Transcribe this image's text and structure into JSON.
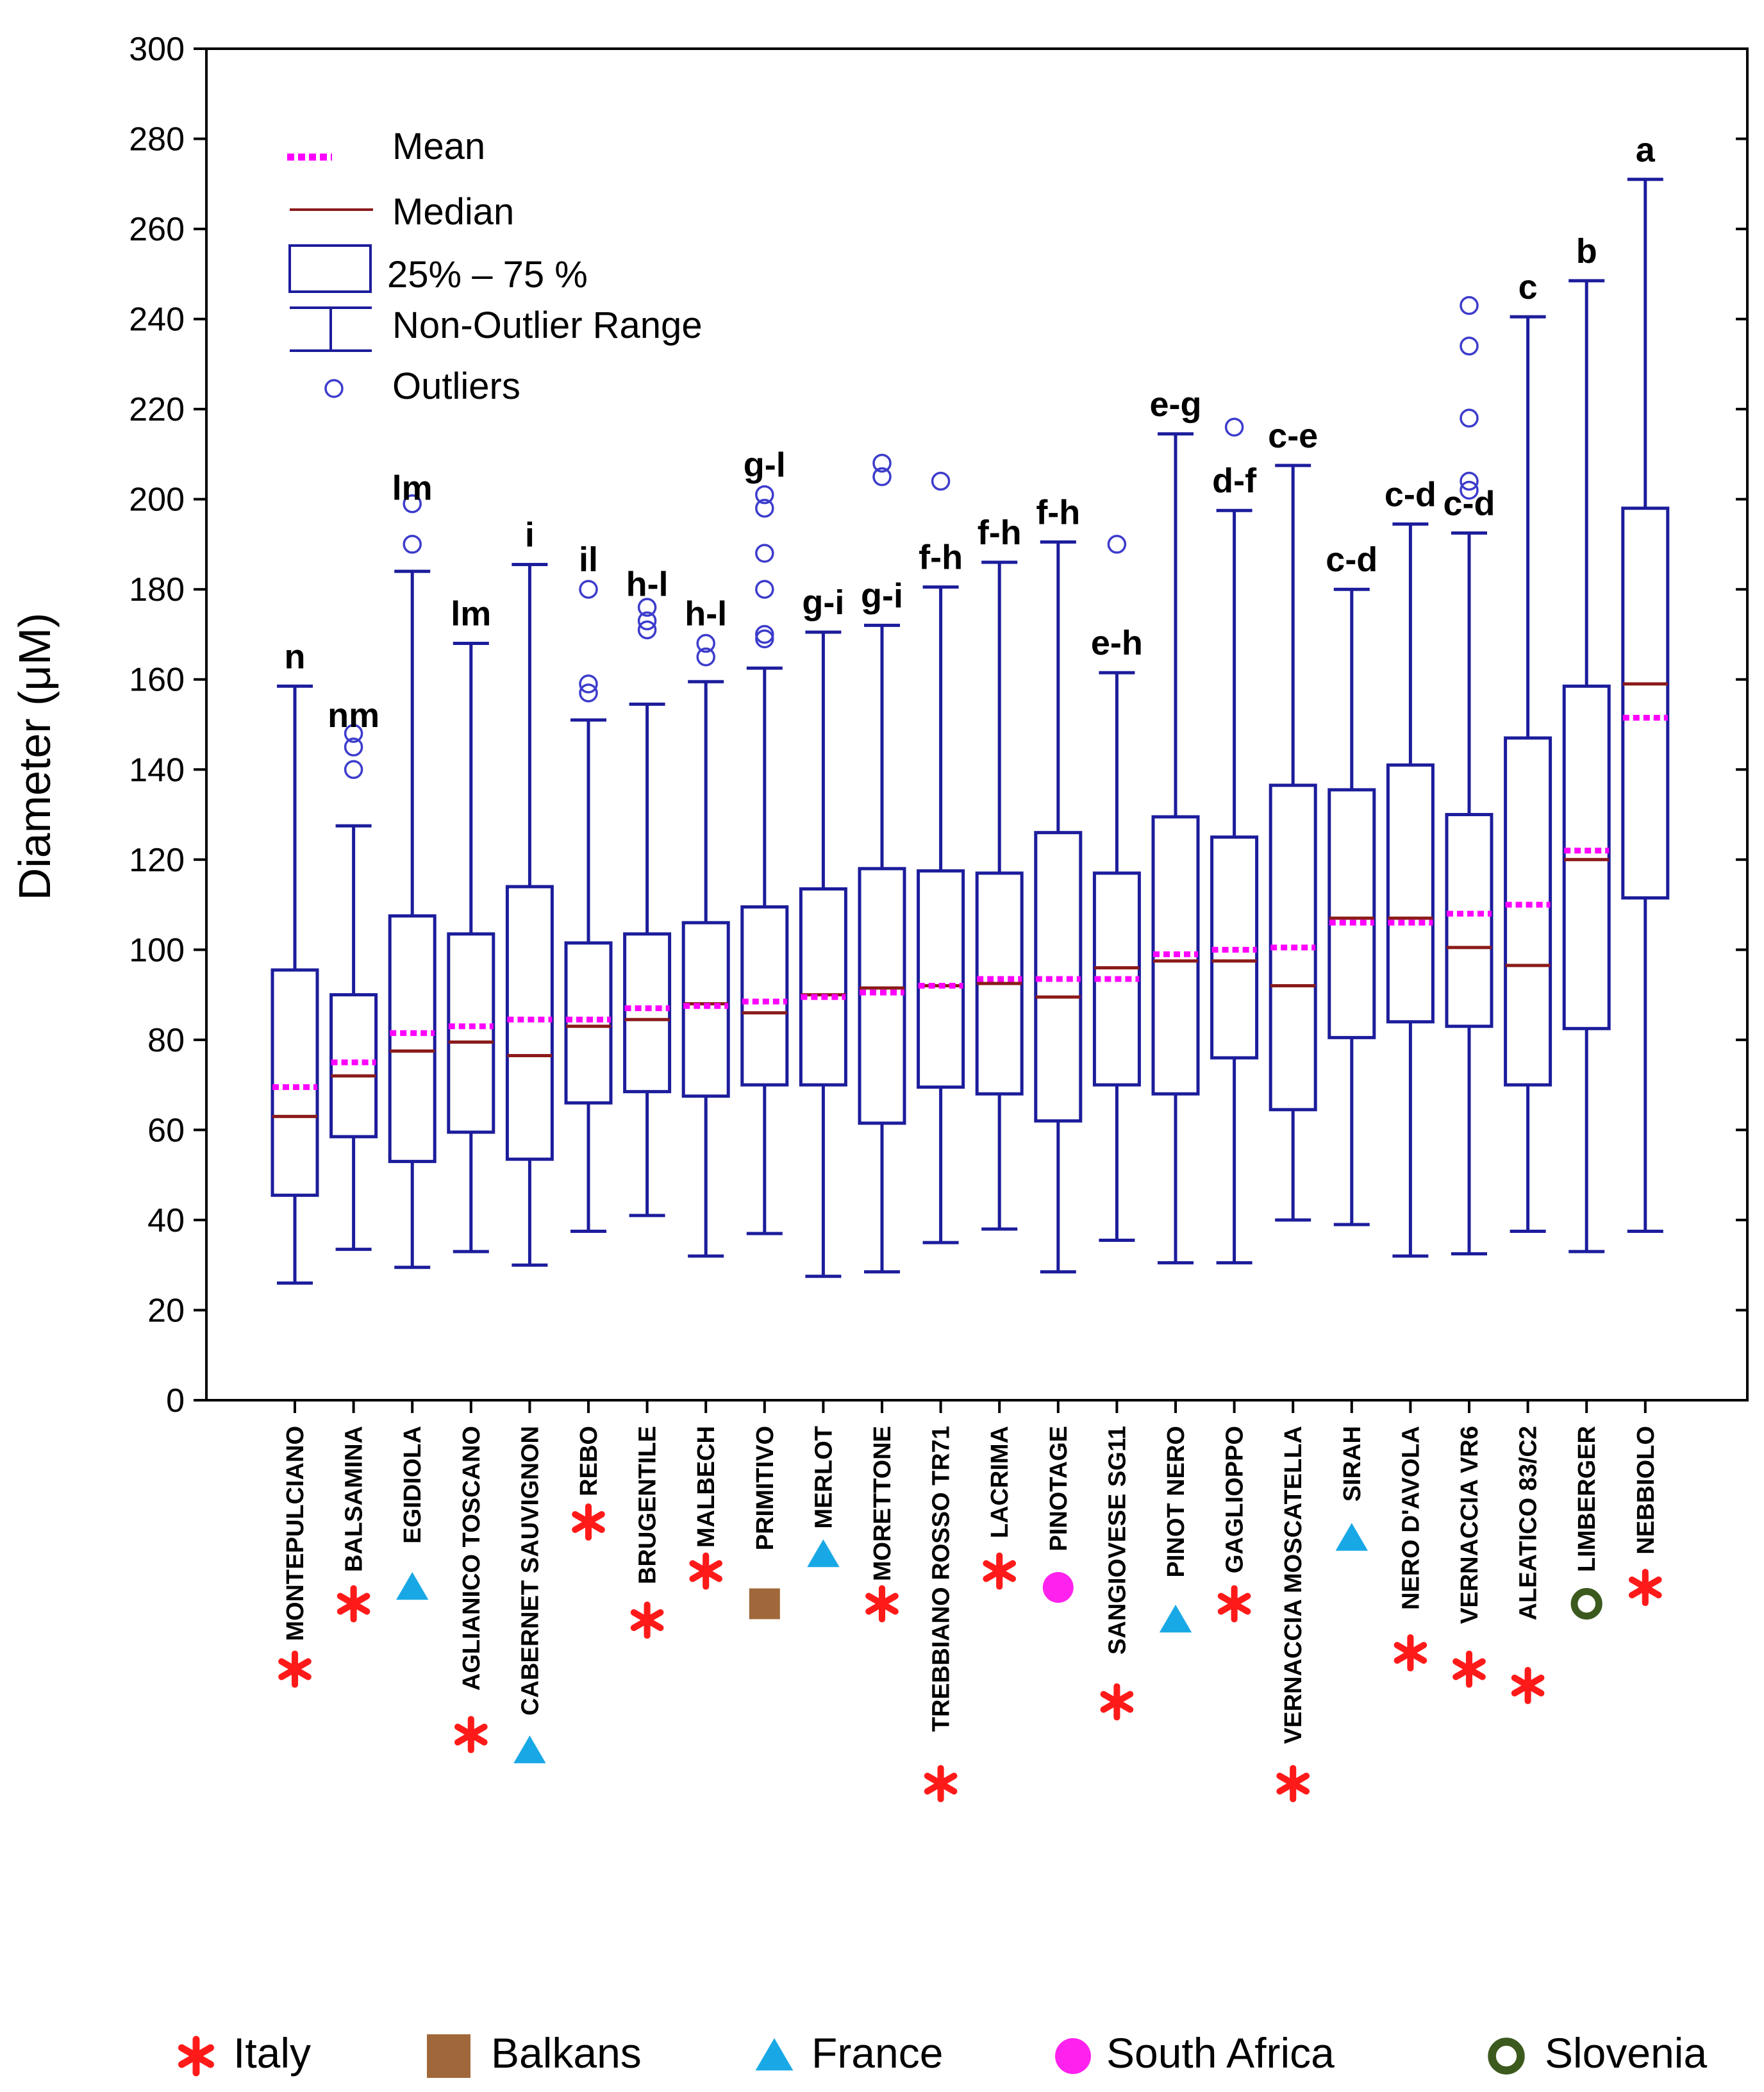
{
  "chart_data": {
    "type": "boxplot",
    "ylabel": "Diameter  (μM)",
    "ylim": [
      0,
      300
    ],
    "yticks": [
      0,
      20,
      40,
      60,
      80,
      100,
      120,
      140,
      160,
      180,
      200,
      220,
      240,
      260,
      280,
      300
    ],
    "colors": {
      "box": "#1c1c9c",
      "median": "#8b1a1a",
      "mean": "#ff00ff",
      "outlier": "#3c3ccc"
    },
    "legend": {
      "mean": "Mean",
      "median": "Median",
      "box": "25% – 75 %",
      "range": "Non-Outlier Range",
      "outliers": "Outliers"
    },
    "categories": [
      {
        "name": "MONTEPULCIANO",
        "origin": "Italy",
        "min": 26,
        "q1": 45.5,
        "median": 63,
        "mean": 69.5,
        "q3": 95.5,
        "max": 158.5,
        "outliers": [],
        "group": "n"
      },
      {
        "name": "BALSAMINA",
        "origin": "Italy",
        "min": 33.5,
        "q1": 58.5,
        "median": 72,
        "mean": 75,
        "q3": 90,
        "max": 127.5,
        "outliers": [
          140,
          145,
          148
        ],
        "group": "nm"
      },
      {
        "name": "EGIDIOLA",
        "origin": "France",
        "min": 29.5,
        "q1": 53,
        "median": 77.5,
        "mean": 81.5,
        "q3": 107.5,
        "max": 184,
        "outliers": [
          190,
          199
        ],
        "group": "lm"
      },
      {
        "name": "AGLIANICO TOSCANO",
        "origin": "Italy",
        "min": 33,
        "q1": 59.5,
        "median": 79.5,
        "mean": 83,
        "q3": 103.5,
        "max": 168,
        "outliers": [],
        "group": "lm"
      },
      {
        "name": "CABERNET SAUVIGNON",
        "origin": "France",
        "min": 30,
        "q1": 53.5,
        "median": 76.5,
        "mean": 84.5,
        "q3": 114,
        "max": 185.5,
        "outliers": [],
        "group": "i"
      },
      {
        "name": "REBO",
        "origin": "Italy",
        "min": 37.5,
        "q1": 66,
        "median": 83,
        "mean": 84.5,
        "q3": 101.5,
        "max": 151,
        "outliers": [
          157,
          159,
          180
        ],
        "group": "il"
      },
      {
        "name": "BRUGENTILE",
        "origin": "Italy",
        "min": 41,
        "q1": 68.5,
        "median": 84.5,
        "mean": 87,
        "q3": 103.5,
        "max": 154.5,
        "outliers": [
          171,
          173,
          176
        ],
        "group": "h-l"
      },
      {
        "name": "MALBECH",
        "origin": "Italy",
        "min": 32,
        "q1": 67.5,
        "median": 88,
        "mean": 87.5,
        "q3": 106,
        "max": 159.5,
        "outliers": [
          165,
          168
        ],
        "group": "h-l"
      },
      {
        "name": "PRIMITIVO",
        "origin": "Balkans",
        "min": 37,
        "q1": 70,
        "median": 86,
        "mean": 88.5,
        "q3": 109.5,
        "max": 162.5,
        "outliers": [
          169,
          170,
          180,
          188,
          198,
          201
        ],
        "group": "g-l"
      },
      {
        "name": "MERLOT",
        "origin": "France",
        "min": 27.5,
        "q1": 70,
        "median": 90,
        "mean": 89.5,
        "q3": 113.5,
        "max": 170.5,
        "outliers": [],
        "group": "g-i"
      },
      {
        "name": "MORETTONE",
        "origin": "Italy",
        "min": 28.5,
        "q1": 61.5,
        "median": 91.5,
        "mean": 90.5,
        "q3": 118,
        "max": 172,
        "outliers": [
          205,
          208
        ],
        "group": "g-i"
      },
      {
        "name": "TREBBIANO ROSSO TR71",
        "origin": "Italy",
        "min": 35,
        "q1": 69.5,
        "median": 92,
        "mean": 92,
        "q3": 117.5,
        "max": 180.5,
        "outliers": [
          204
        ],
        "group": "f-h"
      },
      {
        "name": "LACRIMA",
        "origin": "Italy",
        "min": 38,
        "q1": 68,
        "median": 92.5,
        "mean": 93.5,
        "q3": 117,
        "max": 186,
        "outliers": [],
        "group": "f-h"
      },
      {
        "name": "PINOTAGE",
        "origin": "South Africa",
        "min": 28.5,
        "q1": 62,
        "median": 89.5,
        "mean": 93.5,
        "q3": 126,
        "max": 190.5,
        "outliers": [],
        "group": "f-h"
      },
      {
        "name": "SANGIOVESE SG11",
        "origin": "Italy",
        "min": 35.5,
        "q1": 70,
        "median": 96,
        "mean": 93.5,
        "q3": 117,
        "max": 161.5,
        "outliers": [
          190
        ],
        "group": "e-h"
      },
      {
        "name": "PINOT NERO",
        "origin": "France",
        "min": 30.5,
        "q1": 68,
        "median": 97.5,
        "mean": 99,
        "q3": 129.5,
        "max": 214.5,
        "outliers": [],
        "group": "e-g"
      },
      {
        "name": "GAGLIOPPO",
        "origin": "Italy",
        "min": 30.5,
        "q1": 76,
        "median": 97.5,
        "mean": 100,
        "q3": 125,
        "max": 197.5,
        "outliers": [
          216
        ],
        "group": "d-f"
      },
      {
        "name": "VERNACCIA MOSCATELLA",
        "origin": "Italy",
        "min": 40,
        "q1": 64.5,
        "median": 92,
        "mean": 100.5,
        "q3": 136.5,
        "max": 207.5,
        "outliers": [],
        "group": "c-e"
      },
      {
        "name": "SIRAH",
        "origin": "France",
        "min": 39,
        "q1": 80.5,
        "median": 107,
        "mean": 106,
        "q3": 135.5,
        "max": 180,
        "outliers": [],
        "group": "c-d"
      },
      {
        "name": "NERO D'AVOLA",
        "origin": "Italy",
        "min": 32,
        "q1": 84,
        "median": 107,
        "mean": 106,
        "q3": 141,
        "max": 194.5,
        "outliers": [],
        "group": "c-d"
      },
      {
        "name": "VERNACCIA VR6",
        "origin": "Italy",
        "min": 32.5,
        "q1": 83,
        "median": 100.5,
        "mean": 108,
        "q3": 130,
        "max": 192.5,
        "outliers": [
          202,
          204,
          218,
          234,
          243
        ],
        "group": "c-d"
      },
      {
        "name": "ALEATICO 83/C2",
        "origin": "Italy",
        "min": 37.5,
        "q1": 70,
        "median": 96.5,
        "mean": 110,
        "q3": 147,
        "max": 240.5,
        "outliers": [],
        "group": "c"
      },
      {
        "name": "LIMBERGER",
        "origin": "Slovenia",
        "min": 33,
        "q1": 82.5,
        "median": 120,
        "mean": 122,
        "q3": 158.5,
        "max": 248.5,
        "outliers": [],
        "group": "b"
      },
      {
        "name": "NEBBIOLO",
        "origin": "Italy",
        "min": 37.5,
        "q1": 111.5,
        "median": 159,
        "mean": 151.5,
        "q3": 198,
        "max": 271,
        "outliers": [],
        "group": "a"
      }
    ],
    "country_legend": [
      {
        "key": "Italy",
        "label": "Italy",
        "color": "#ff1a1a"
      },
      {
        "key": "Balkans",
        "label": "Balkans",
        "color": "#a0683a"
      },
      {
        "key": "France",
        "label": "France",
        "color": "#19a8e6"
      },
      {
        "key": "South Africa",
        "label": "South Africa",
        "color": "#ff22ee"
      },
      {
        "key": "Slovenia",
        "label": "Slovenia",
        "color": "#3c5a1e"
      }
    ]
  }
}
